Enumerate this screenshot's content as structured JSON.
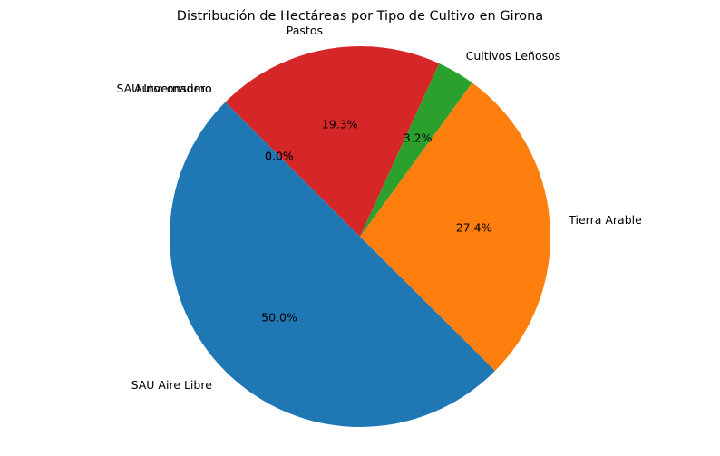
{
  "chart_data": {
    "type": "pie",
    "title": "Distribución de Hectáreas por Tipo de Cultivo en Girona",
    "start_angle_deg": 135,
    "direction": "counterclockwise",
    "slices": [
      {
        "label": "SAU Aire Libre",
        "percent": 50.0,
        "pct_text": "50.0%",
        "color": "#1f77b4"
      },
      {
        "label": "Tierra Arable",
        "percent": 27.4,
        "pct_text": "27.4%",
        "color": "#ff7f0e"
      },
      {
        "label": "Cultivos Leñosos",
        "percent": 3.2,
        "pct_text": "3.2%",
        "color": "#2ca02c"
      },
      {
        "label": "Pastos",
        "percent": 19.3,
        "pct_text": "19.3%",
        "color": "#d62728"
      },
      {
        "label": "Autoconsumo",
        "percent": 0.0,
        "pct_text": "0.0%",
        "color": "#9467bd"
      },
      {
        "label": "SAU Invernadero",
        "percent": 0.0,
        "pct_text": "0.0%",
        "color": "#8c564b"
      }
    ]
  }
}
